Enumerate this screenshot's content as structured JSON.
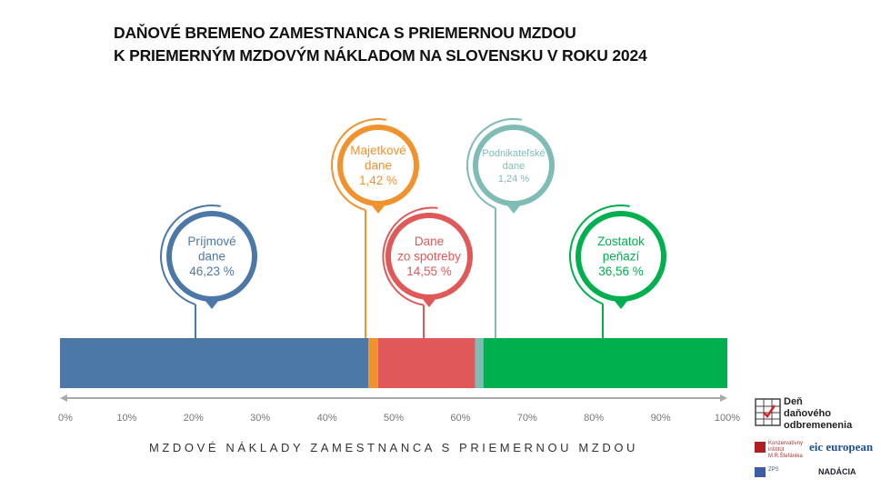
{
  "title_lines": [
    "DAŇOVÉ BREMENO ZAMESTNANCA S PRIEMERNOU MZDOU",
    "K PRIEMERNÝM MZDOVÝM NÁKLADOM NA SLOVENSKU V ROKU 2024"
  ],
  "chart_data": {
    "type": "bar",
    "orientation": "horizontal-stacked",
    "title": "DAŇOVÉ BREMENO ZAMESTNANCA S PRIEMERNOU MZDOU K PRIEMERNÝM MZDOVÝM NÁKLADOM NA SLOVENSKU V ROKU 2024",
    "xlabel": "MZDOVÉ NÁKLADY ZAMESTNANCA S PRIEMERNOU MZDOU",
    "xlim": [
      0,
      100
    ],
    "ticks": [
      "0%",
      "10%",
      "20%",
      "30%",
      "40%",
      "50%",
      "60%",
      "70%",
      "80%",
      "90%",
      "100%"
    ],
    "series": [
      {
        "name": "Príjmové dane",
        "label_lines": [
          "Príjmové",
          "dane"
        ],
        "value": 46.23,
        "value_label": "46,23 %",
        "color": "#4c78a8"
      },
      {
        "name": "Majetkové dane",
        "label_lines": [
          "Majetkové",
          "dane"
        ],
        "value": 1.42,
        "value_label": "1,42 %",
        "color": "#f0922e"
      },
      {
        "name": "Dane zo spotreby",
        "label_lines": [
          "Dane",
          "zo spotreby"
        ],
        "value": 14.55,
        "value_label": "14,55 %",
        "color": "#e15858"
      },
      {
        "name": "Podnikateľské dane",
        "label_lines": [
          "Podnikateľské",
          "dane"
        ],
        "value": 1.24,
        "value_label": "1,24 %",
        "color": "#7fbcb5"
      },
      {
        "name": "Zostatok peňazí",
        "label_lines": [
          "Zostatok",
          "peňazí"
        ],
        "value": 36.56,
        "value_label": "36,56 %",
        "color": "#00b04f"
      }
    ],
    "grid": false,
    "legend": "none"
  },
  "logos": {
    "den": [
      "Deň",
      "daňového",
      "odbremenenia"
    ],
    "konzervativny": "Konzervatívny inštitút M.R.Štefánika",
    "eic": "eic european",
    "zps": "ZPS",
    "nadacia": "NADÁCIA"
  }
}
